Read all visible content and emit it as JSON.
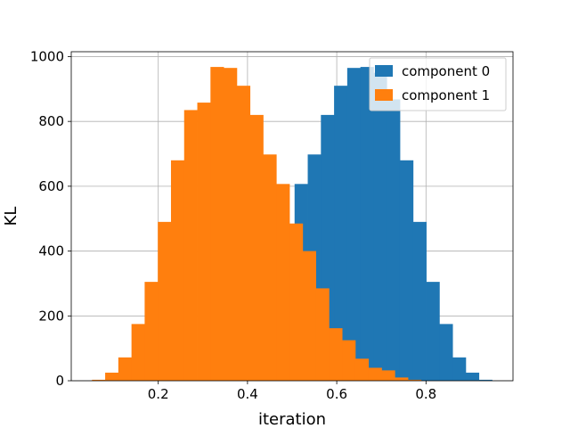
{
  "chart_data": {
    "type": "bar",
    "title": "",
    "xlabel": "iteration",
    "ylabel": "KL",
    "xlim": [
      0.005,
      0.995
    ],
    "ylim": [
      0,
      1015
    ],
    "grid": true,
    "legend_position": "top-right",
    "xticks": [
      0.2,
      0.4,
      0.6,
      0.8
    ],
    "yticks": [
      0,
      200,
      400,
      600,
      800,
      1000
    ],
    "xtick_labels": [
      "0.2",
      "0.4",
      "0.6",
      "0.8"
    ],
    "ytick_labels": [
      "0",
      "200",
      "400",
      "600",
      "800",
      "1000"
    ],
    "bin_width": 0.0295,
    "series": [
      {
        "name": "component 0",
        "color": "#1f77b4",
        "bin_starts": [
          0.5055,
          0.535,
          0.5645,
          0.594,
          0.6235,
          0.653,
          0.6825,
          0.712,
          0.7415,
          0.771,
          0.8005,
          0.83,
          0.8595,
          0.889,
          0.9185
        ],
        "values": [
          607,
          698,
          820,
          910,
          965,
          968,
          950,
          868,
          680,
          490,
          305,
          175,
          72,
          25,
          3
        ]
      },
      {
        "name": "component 1",
        "color": "#ff7f0e",
        "bin_starts": [
          0.0515,
          0.081,
          0.1105,
          0.14,
          0.1695,
          0.199,
          0.2285,
          0.258,
          0.2875,
          0.317,
          0.3465,
          0.376,
          0.4055,
          0.435,
          0.4645,
          0.494,
          0.5235,
          0.553,
          0.5825,
          0.612,
          0.6415,
          0.671,
          0.7005,
          0.73,
          0.7595
        ],
        "values": [
          3,
          25,
          72,
          175,
          305,
          490,
          680,
          835,
          858,
          968,
          965,
          910,
          820,
          698,
          607,
          485,
          400,
          285,
          162,
          125,
          68,
          40,
          32,
          10,
          3
        ]
      }
    ]
  }
}
